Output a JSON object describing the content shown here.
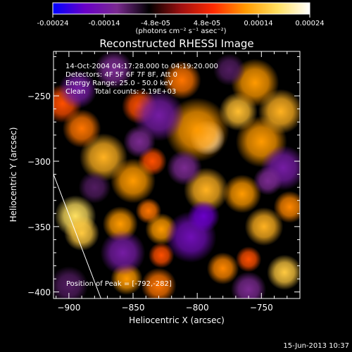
{
  "chart_data": {
    "type": "heatmap",
    "title": "Reconstructed RHESSI Image",
    "xlabel": "Heliocentric X (arcsec)",
    "ylabel": "Heliocentric Y (arcsec)",
    "xlim": [
      -912,
      -720
    ],
    "ylim": [
      -405,
      -216
    ],
    "x_ticks": [
      {
        "value": -900,
        "label": "−900"
      },
      {
        "value": -850,
        "label": "−850"
      },
      {
        "value": -800,
        "label": "−800"
      },
      {
        "value": -750,
        "label": "−750"
      }
    ],
    "y_ticks": [
      {
        "value": -250,
        "label": "−250"
      },
      {
        "value": -300,
        "label": "−300"
      },
      {
        "value": -350,
        "label": "−350"
      },
      {
        "value": -400,
        "label": "−400"
      }
    ],
    "info_lines": [
      "14-Oct-2004 04:17:28.000 to 04:19:20.000",
      "Detectors: 4F 5F 6F 7F 8F, Att 0",
      "Energy Range: 25.0 - 50.0 keV",
      "Clean    Total counts: 2.19E+03"
    ],
    "peak_text": "Position of Peak = [-792,-282]",
    "peak": {
      "x": -792,
      "y": -282
    },
    "colorbar": {
      "min": -0.00024,
      "max": 0.00024,
      "tick_labels": [
        "-0.00024",
        "-0.00014",
        "-4.8e-05",
        "4.8e-05",
        "0.00014",
        "0.00024"
      ],
      "unit_label": "(photons cm⁻² s⁻¹ asec⁻²)",
      "colormap": [
        "#0000ff",
        "#6a00c8",
        "#7a2a90",
        "#000000",
        "#a01010",
        "#ff2a00",
        "#ff9a00",
        "#ffe060",
        "#ffffff"
      ]
    },
    "limb_line": {
      "points": [
        {
          "x": -912,
          "y": -310
        },
        {
          "x": -875,
          "y": -405
        }
      ]
    },
    "blobs": [
      {
        "x": -792,
        "y": -282,
        "r": 11,
        "v": 0.00024
      },
      {
        "x": -800,
        "y": -276,
        "r": 20,
        "v": 0.00012
      },
      {
        "x": -768,
        "y": -262,
        "r": 12,
        "v": 0.00015
      },
      {
        "x": -750,
        "y": -285,
        "r": 16,
        "v": 0.00012
      },
      {
        "x": -755,
        "y": -240,
        "r": 15,
        "v": 0.00012
      },
      {
        "x": -735,
        "y": -262,
        "r": 14,
        "v": 0.00014
      },
      {
        "x": -812,
        "y": -238,
        "r": 12,
        "v": 0.0001
      },
      {
        "x": -845,
        "y": -258,
        "r": 11,
        "v": 8e-05
      },
      {
        "x": -835,
        "y": -300,
        "r": 9,
        "v": 8e-05
      },
      {
        "x": -873,
        "y": -297,
        "r": 15,
        "v": 0.00014
      },
      {
        "x": -850,
        "y": -315,
        "r": 14,
        "v": 0.00012
      },
      {
        "x": -895,
        "y": -342,
        "r": 13,
        "v": 0.00018
      },
      {
        "x": -890,
        "y": -355,
        "r": 11,
        "v": 0.00016
      },
      {
        "x": -860,
        "y": -348,
        "r": 11,
        "v": 0.00012
      },
      {
        "x": -838,
        "y": -338,
        "r": 8,
        "v": 0.0001
      },
      {
        "x": -828,
        "y": -352,
        "r": 10,
        "v": 0.00012
      },
      {
        "x": -855,
        "y": -390,
        "r": 10,
        "v": 0.00012
      },
      {
        "x": -830,
        "y": -395,
        "r": 11,
        "v": 0.0001
      },
      {
        "x": -828,
        "y": -372,
        "r": 8,
        "v": 8e-05
      },
      {
        "x": -793,
        "y": -322,
        "r": 14,
        "v": 0.00014
      },
      {
        "x": -765,
        "y": -325,
        "r": 12,
        "v": 0.00012
      },
      {
        "x": -748,
        "y": -350,
        "r": 12,
        "v": 0.00014
      },
      {
        "x": -728,
        "y": -335,
        "r": 10,
        "v": 0.00011
      },
      {
        "x": -732,
        "y": -385,
        "r": 11,
        "v": 0.00016
      },
      {
        "x": -760,
        "y": -375,
        "r": 8,
        "v": 8e-05
      },
      {
        "x": -780,
        "y": -382,
        "r": 10,
        "v": 0.00011
      },
      {
        "x": -905,
        "y": -256,
        "r": 12,
        "v": 8e-05
      },
      {
        "x": -890,
        "y": -275,
        "r": 12,
        "v": 0.0001
      },
      {
        "x": -893,
        "y": -245,
        "r": 12,
        "v": -0.00014
      },
      {
        "x": -830,
        "y": -265,
        "r": 16,
        "v": -0.00014
      },
      {
        "x": -865,
        "y": -230,
        "r": 12,
        "v": -0.00012
      },
      {
        "x": -845,
        "y": -285,
        "r": 10,
        "v": -0.00012
      },
      {
        "x": -810,
        "y": -305,
        "r": 11,
        "v": -0.00012
      },
      {
        "x": -805,
        "y": -358,
        "r": 16,
        "v": -0.00016
      },
      {
        "x": -795,
        "y": -342,
        "r": 10,
        "v": -0.00018
      },
      {
        "x": -858,
        "y": -370,
        "r": 14,
        "v": -0.00014
      },
      {
        "x": -880,
        "y": -320,
        "r": 10,
        "v": -0.0001
      },
      {
        "x": -733,
        "y": -305,
        "r": 14,
        "v": -0.00014
      },
      {
        "x": -745,
        "y": -315,
        "r": 9,
        "v": -0.00012
      },
      {
        "x": -760,
        "y": -398,
        "r": 11,
        "v": -0.00012
      },
      {
        "x": -900,
        "y": -395,
        "r": 12,
        "v": -0.0001
      },
      {
        "x": -775,
        "y": -230,
        "r": 10,
        "v": -0.0001
      }
    ]
  },
  "footer_date": "15-Jun-2013 10:37"
}
